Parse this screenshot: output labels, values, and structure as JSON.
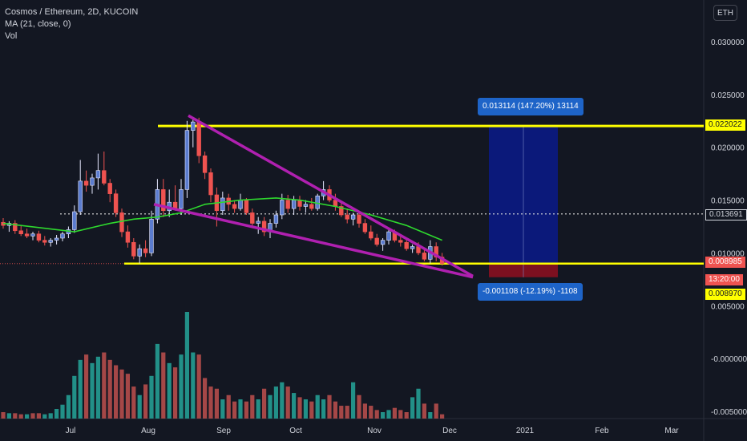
{
  "legend": {
    "title": "Cosmos / Ethereum, 2D, KUCOIN",
    "ma": "MA (21, close, 0)",
    "vol": "Vol"
  },
  "currency_button": "ETH",
  "colors": {
    "background": "#131722",
    "up": "#5b7ccf",
    "up_border": "#e6e8ff",
    "down": "#ef5350",
    "ma": "#2ed82e",
    "resistance": "#ffff00",
    "wedge": "#b020b0",
    "target_box": "#0a1a8a",
    "stop_box": "#8a1020",
    "vol_up": "#26a69a",
    "vol_down": "#c0504d",
    "axis_text": "#d1d4dc"
  },
  "chart_data": {
    "type": "candlestick",
    "x_ticks": [
      "Jul",
      "Aug",
      "Sep",
      "Oct",
      "Nov",
      "Dec",
      "2021",
      "Feb",
      "Mar"
    ],
    "y_ticks": [
      "0.030000",
      "0.025000",
      "0.020000",
      "0.015000",
      "0.010000",
      "0.005000",
      "-0.000000",
      "-0.005000"
    ],
    "ylim": [
      -0.0057,
      0.0335
    ],
    "candles": [
      {
        "t": "Jun 11",
        "o": 0.0129,
        "h": 0.0133,
        "l": 0.0123,
        "c": 0.0126
      },
      {
        "t": "Jun 13",
        "o": 0.0126,
        "h": 0.013,
        "l": 0.012,
        "c": 0.0128
      },
      {
        "t": "Jun 15",
        "o": 0.0128,
        "h": 0.0131,
        "l": 0.0118,
        "c": 0.0121
      },
      {
        "t": "Jun 17",
        "o": 0.0121,
        "h": 0.0126,
        "l": 0.0116,
        "c": 0.0118
      },
      {
        "t": "Jun 19",
        "o": 0.0118,
        "h": 0.0123,
        "l": 0.0114,
        "c": 0.0116
      },
      {
        "t": "Jun 21",
        "o": 0.0116,
        "h": 0.012,
        "l": 0.0112,
        "c": 0.0118
      },
      {
        "t": "Jun 23",
        "o": 0.0118,
        "h": 0.0121,
        "l": 0.011,
        "c": 0.0112
      },
      {
        "t": "Jun 25",
        "o": 0.0112,
        "h": 0.0116,
        "l": 0.0107,
        "c": 0.011
      },
      {
        "t": "Jun 27",
        "o": 0.011,
        "h": 0.0114,
        "l": 0.0106,
        "c": 0.0112
      },
      {
        "t": "Jun 29",
        "o": 0.0112,
        "h": 0.0117,
        "l": 0.0108,
        "c": 0.0114
      },
      {
        "t": "Jul 1",
        "o": 0.0114,
        "h": 0.012,
        "l": 0.0111,
        "c": 0.0118
      },
      {
        "t": "Jul 3",
        "o": 0.0118,
        "h": 0.0125,
        "l": 0.0114,
        "c": 0.0122
      },
      {
        "t": "Jul 5",
        "o": 0.0122,
        "h": 0.0145,
        "l": 0.0119,
        "c": 0.0139
      },
      {
        "t": "Jul 7",
        "o": 0.0139,
        "h": 0.0188,
        "l": 0.0136,
        "c": 0.0168
      },
      {
        "t": "Jul 9",
        "o": 0.0168,
        "h": 0.0178,
        "l": 0.0158,
        "c": 0.0164
      },
      {
        "t": "Jul 11",
        "o": 0.0164,
        "h": 0.0175,
        "l": 0.0156,
        "c": 0.0171
      },
      {
        "t": "Jul 13",
        "o": 0.0171,
        "h": 0.0194,
        "l": 0.016,
        "c": 0.0178
      },
      {
        "t": "Jul 15",
        "o": 0.0178,
        "h": 0.0196,
        "l": 0.0164,
        "c": 0.0166
      },
      {
        "t": "Jul 17",
        "o": 0.0166,
        "h": 0.017,
        "l": 0.0148,
        "c": 0.0156
      },
      {
        "t": "Jul 19",
        "o": 0.0156,
        "h": 0.016,
        "l": 0.0134,
        "c": 0.0138
      },
      {
        "t": "Jul 21",
        "o": 0.0138,
        "h": 0.0142,
        "l": 0.0115,
        "c": 0.012
      },
      {
        "t": "Jul 23",
        "o": 0.012,
        "h": 0.0126,
        "l": 0.0105,
        "c": 0.011
      },
      {
        "t": "Jul 25",
        "o": 0.011,
        "h": 0.0114,
        "l": 0.0094,
        "c": 0.0097
      },
      {
        "t": "Jul 27",
        "o": 0.0097,
        "h": 0.0108,
        "l": 0.009,
        "c": 0.0104
      },
      {
        "t": "Jul 29",
        "o": 0.0104,
        "h": 0.0112,
        "l": 0.0096,
        "c": 0.01
      },
      {
        "t": "Jul 31",
        "o": 0.01,
        "h": 0.014,
        "l": 0.0097,
        "c": 0.0132
      },
      {
        "t": "Aug 2",
        "o": 0.0132,
        "h": 0.017,
        "l": 0.0128,
        "c": 0.016
      },
      {
        "t": "Aug 4",
        "o": 0.016,
        "h": 0.017,
        "l": 0.0134,
        "c": 0.014
      },
      {
        "t": "Aug 6",
        "o": 0.014,
        "h": 0.016,
        "l": 0.0134,
        "c": 0.0148
      },
      {
        "t": "Aug 8",
        "o": 0.0148,
        "h": 0.0164,
        "l": 0.014,
        "c": 0.0142
      },
      {
        "t": "Aug 10",
        "o": 0.0142,
        "h": 0.017,
        "l": 0.0136,
        "c": 0.016
      },
      {
        "t": "Aug 12",
        "o": 0.016,
        "h": 0.0225,
        "l": 0.0152,
        "c": 0.0216
      },
      {
        "t": "Aug 14",
        "o": 0.0216,
        "h": 0.0226,
        "l": 0.02,
        "c": 0.0224
      },
      {
        "t": "Aug 16",
        "o": 0.0224,
        "h": 0.0228,
        "l": 0.0185,
        "c": 0.0192
      },
      {
        "t": "Aug 18",
        "o": 0.0192,
        "h": 0.0196,
        "l": 0.017,
        "c": 0.0176
      },
      {
        "t": "Aug 20",
        "o": 0.0176,
        "h": 0.018,
        "l": 0.0148,
        "c": 0.0155
      },
      {
        "t": "Aug 22",
        "o": 0.0155,
        "h": 0.0162,
        "l": 0.0125,
        "c": 0.014
      },
      {
        "t": "Aug 24",
        "o": 0.014,
        "h": 0.0158,
        "l": 0.0136,
        "c": 0.0152
      },
      {
        "t": "Aug 26",
        "o": 0.0152,
        "h": 0.0156,
        "l": 0.014,
        "c": 0.0146
      },
      {
        "t": "Aug 28",
        "o": 0.0146,
        "h": 0.015,
        "l": 0.0138,
        "c": 0.0142
      },
      {
        "t": "Aug 30",
        "o": 0.0142,
        "h": 0.0156,
        "l": 0.014,
        "c": 0.015
      },
      {
        "t": "Sep 1",
        "o": 0.015,
        "h": 0.0152,
        "l": 0.0136,
        "c": 0.0138
      },
      {
        "t": "Sep 3",
        "o": 0.0138,
        "h": 0.0142,
        "l": 0.0126,
        "c": 0.0128
      },
      {
        "t": "Sep 5",
        "o": 0.0128,
        "h": 0.0134,
        "l": 0.0118,
        "c": 0.013
      },
      {
        "t": "Sep 7",
        "o": 0.013,
        "h": 0.0134,
        "l": 0.0116,
        "c": 0.012
      },
      {
        "t": "Sep 9",
        "o": 0.012,
        "h": 0.0132,
        "l": 0.0114,
        "c": 0.0128
      },
      {
        "t": "Sep 11",
        "o": 0.0128,
        "h": 0.014,
        "l": 0.0124,
        "c": 0.0136
      },
      {
        "t": "Sep 13",
        "o": 0.0136,
        "h": 0.0156,
        "l": 0.0132,
        "c": 0.015
      },
      {
        "t": "Sep 15",
        "o": 0.015,
        "h": 0.0155,
        "l": 0.0138,
        "c": 0.0142
      },
      {
        "t": "Sep 17",
        "o": 0.0142,
        "h": 0.0154,
        "l": 0.0136,
        "c": 0.015
      },
      {
        "t": "Sep 19",
        "o": 0.015,
        "h": 0.0154,
        "l": 0.014,
        "c": 0.0144
      },
      {
        "t": "Sep 21",
        "o": 0.0144,
        "h": 0.015,
        "l": 0.0138,
        "c": 0.0146
      },
      {
        "t": "Sep 23",
        "o": 0.0146,
        "h": 0.0152,
        "l": 0.014,
        "c": 0.0142
      },
      {
        "t": "Sep 25",
        "o": 0.0142,
        "h": 0.0156,
        "l": 0.014,
        "c": 0.0154
      },
      {
        "t": "Sep 27",
        "o": 0.0154,
        "h": 0.0168,
        "l": 0.015,
        "c": 0.016
      },
      {
        "t": "Sep 29",
        "o": 0.016,
        "h": 0.0164,
        "l": 0.0148,
        "c": 0.015
      },
      {
        "t": "Oct 1",
        "o": 0.015,
        "h": 0.0156,
        "l": 0.014,
        "c": 0.0144
      },
      {
        "t": "Oct 3",
        "o": 0.0144,
        "h": 0.0148,
        "l": 0.0134,
        "c": 0.0136
      },
      {
        "t": "Oct 5",
        "o": 0.0136,
        "h": 0.0142,
        "l": 0.0128,
        "c": 0.0132
      },
      {
        "t": "Oct 7",
        "o": 0.0132,
        "h": 0.0138,
        "l": 0.0126,
        "c": 0.0136
      },
      {
        "t": "Oct 9",
        "o": 0.0136,
        "h": 0.014,
        "l": 0.0124,
        "c": 0.0128
      },
      {
        "t": "Oct 11",
        "o": 0.0128,
        "h": 0.0132,
        "l": 0.0118,
        "c": 0.012
      },
      {
        "t": "Oct 13",
        "o": 0.012,
        "h": 0.0126,
        "l": 0.0112,
        "c": 0.0114
      },
      {
        "t": "Oct 15",
        "o": 0.0114,
        "h": 0.0118,
        "l": 0.0106,
        "c": 0.0108
      },
      {
        "t": "Oct 17",
        "o": 0.0108,
        "h": 0.0114,
        "l": 0.0102,
        "c": 0.0112
      },
      {
        "t": "Oct 19",
        "o": 0.0112,
        "h": 0.0124,
        "l": 0.0108,
        "c": 0.012
      },
      {
        "t": "Oct 21",
        "o": 0.012,
        "h": 0.0122,
        "l": 0.011,
        "c": 0.0112
      },
      {
        "t": "Oct 23",
        "o": 0.0112,
        "h": 0.0116,
        "l": 0.0106,
        "c": 0.011
      },
      {
        "t": "Oct 25",
        "o": 0.011,
        "h": 0.0112,
        "l": 0.0102,
        "c": 0.0104
      },
      {
        "t": "Oct 27",
        "o": 0.0104,
        "h": 0.0108,
        "l": 0.01,
        "c": 0.0106
      },
      {
        "t": "Oct 29",
        "o": 0.0106,
        "h": 0.011,
        "l": 0.0098,
        "c": 0.01
      },
      {
        "t": "Oct 31",
        "o": 0.01,
        "h": 0.0104,
        "l": 0.0092,
        "c": 0.0094
      },
      {
        "t": "Nov 2",
        "o": 0.0094,
        "h": 0.0112,
        "l": 0.009,
        "c": 0.0106
      },
      {
        "t": "Nov 4",
        "o": 0.0106,
        "h": 0.011,
        "l": 0.0092,
        "c": 0.0096
      },
      {
        "t": "Nov 6",
        "o": 0.0096,
        "h": 0.01,
        "l": 0.0088,
        "c": 0.009
      }
    ],
    "ma_21": [
      [
        0,
        0.0128
      ],
      [
        6,
        0.0124
      ],
      [
        12,
        0.012
      ],
      [
        18,
        0.0128
      ],
      [
        22,
        0.0132
      ],
      [
        26,
        0.0134
      ],
      [
        30,
        0.0138
      ],
      [
        34,
        0.0146
      ],
      [
        40,
        0.015
      ],
      [
        46,
        0.0152
      ],
      [
        50,
        0.015
      ],
      [
        56,
        0.0144
      ],
      [
        62,
        0.0136
      ],
      [
        68,
        0.0126
      ],
      [
        74,
        0.0112
      ]
    ],
    "volume": [
      {
        "t": "Jun 11",
        "v": 0.06,
        "up": false
      },
      {
        "t": "Jun 13",
        "v": 0.05,
        "up": true
      },
      {
        "t": "Jun 15",
        "v": 0.05,
        "up": false
      },
      {
        "t": "Jun 17",
        "v": 0.04,
        "up": false
      },
      {
        "t": "Jun 19",
        "v": 0.04,
        "up": true
      },
      {
        "t": "Jun 21",
        "v": 0.05,
        "up": false
      },
      {
        "t": "Jun 23",
        "v": 0.05,
        "up": false
      },
      {
        "t": "Jun 25",
        "v": 0.04,
        "up": true
      },
      {
        "t": "Jun 27",
        "v": 0.05,
        "up": true
      },
      {
        "t": "Jun 29",
        "v": 0.09,
        "up": true
      },
      {
        "t": "Jul 1",
        "v": 0.13,
        "up": true
      },
      {
        "t": "Jul 3",
        "v": 0.22,
        "up": true
      },
      {
        "t": "Jul 5",
        "v": 0.4,
        "up": true
      },
      {
        "t": "Jul 7",
        "v": 0.55,
        "up": true
      },
      {
        "t": "Jul 9",
        "v": 0.6,
        "up": false
      },
      {
        "t": "Jul 11",
        "v": 0.52,
        "up": true
      },
      {
        "t": "Jul 13",
        "v": 0.58,
        "up": true
      },
      {
        "t": "Jul 15",
        "v": 0.62,
        "up": false
      },
      {
        "t": "Jul 17",
        "v": 0.55,
        "up": false
      },
      {
        "t": "Jul 19",
        "v": 0.5,
        "up": false
      },
      {
        "t": "Jul 21",
        "v": 0.46,
        "up": false
      },
      {
        "t": "Jul 23",
        "v": 0.42,
        "up": false
      },
      {
        "t": "Jul 25",
        "v": 0.3,
        "up": false
      },
      {
        "t": "Jul 27",
        "v": 0.22,
        "up": true
      },
      {
        "t": "Jul 29",
        "v": 0.32,
        "up": false
      },
      {
        "t": "Jul 31",
        "v": 0.4,
        "up": true
      },
      {
        "t": "Aug 2",
        "v": 0.7,
        "up": true
      },
      {
        "t": "Aug 4",
        "v": 0.62,
        "up": false
      },
      {
        "t": "Aug 6",
        "v": 0.52,
        "up": true
      },
      {
        "t": "Aug 8",
        "v": 0.48,
        "up": false
      },
      {
        "t": "Aug 10",
        "v": 0.6,
        "up": true
      },
      {
        "t": "Aug 12",
        "v": 1.0,
        "up": true
      },
      {
        "t": "Aug 14",
        "v": 0.62,
        "up": true
      },
      {
        "t": "Aug 16",
        "v": 0.6,
        "up": false
      },
      {
        "t": "Aug 18",
        "v": 0.38,
        "up": false
      },
      {
        "t": "Aug 20",
        "v": 0.3,
        "up": false
      },
      {
        "t": "Aug 22",
        "v": 0.28,
        "up": false
      },
      {
        "t": "Aug 24",
        "v": 0.18,
        "up": true
      },
      {
        "t": "Aug 26",
        "v": 0.22,
        "up": false
      },
      {
        "t": "Aug 28",
        "v": 0.16,
        "up": false
      },
      {
        "t": "Aug 30",
        "v": 0.18,
        "up": true
      },
      {
        "t": "Sep 1",
        "v": 0.16,
        "up": false
      },
      {
        "t": "Sep 3",
        "v": 0.22,
        "up": false
      },
      {
        "t": "Sep 5",
        "v": 0.18,
        "up": true
      },
      {
        "t": "Sep 7",
        "v": 0.28,
        "up": false
      },
      {
        "t": "Sep 9",
        "v": 0.22,
        "up": true
      },
      {
        "t": "Sep 11",
        "v": 0.3,
        "up": true
      },
      {
        "t": "Sep 13",
        "v": 0.34,
        "up": true
      },
      {
        "t": "Sep 15",
        "v": 0.3,
        "up": false
      },
      {
        "t": "Sep 17",
        "v": 0.24,
        "up": true
      },
      {
        "t": "Sep 19",
        "v": 0.2,
        "up": false
      },
      {
        "t": "Sep 21",
        "v": 0.18,
        "up": true
      },
      {
        "t": "Sep 23",
        "v": 0.16,
        "up": false
      },
      {
        "t": "Sep 25",
        "v": 0.22,
        "up": true
      },
      {
        "t": "Sep 27",
        "v": 0.18,
        "up": true
      },
      {
        "t": "Sep 29",
        "v": 0.22,
        "up": false
      },
      {
        "t": "Oct 1",
        "v": 0.16,
        "up": false
      },
      {
        "t": "Oct 3",
        "v": 0.12,
        "up": false
      },
      {
        "t": "Oct 5",
        "v": 0.12,
        "up": false
      },
      {
        "t": "Oct 7",
        "v": 0.34,
        "up": true
      },
      {
        "t": "Oct 9",
        "v": 0.22,
        "up": false
      },
      {
        "t": "Oct 11",
        "v": 0.14,
        "up": false
      },
      {
        "t": "Oct 13",
        "v": 0.12,
        "up": false
      },
      {
        "t": "Oct 15",
        "v": 0.08,
        "up": false
      },
      {
        "t": "Oct 17",
        "v": 0.06,
        "up": true
      },
      {
        "t": "Oct 19",
        "v": 0.08,
        "up": true
      },
      {
        "t": "Oct 21",
        "v": 0.1,
        "up": false
      },
      {
        "t": "Oct 23",
        "v": 0.08,
        "up": false
      },
      {
        "t": "Oct 25",
        "v": 0.06,
        "up": false
      },
      {
        "t": "Oct 27",
        "v": 0.2,
        "up": true
      },
      {
        "t": "Oct 29",
        "v": 0.28,
        "up": true
      },
      {
        "t": "Oct 31",
        "v": 0.14,
        "up": false
      },
      {
        "t": "Nov 2",
        "v": 0.06,
        "up": true
      },
      {
        "t": "Nov 4",
        "v": 0.14,
        "up": false
      },
      {
        "t": "Nov 6",
        "v": 0.04,
        "up": false
      }
    ],
    "drawings": {
      "resistance_level": 0.022022,
      "current_dotted_level": 0.013691,
      "support_level": 0.008985,
      "wedge_upper": [
        [
          0.023,
          "Aug 8"
        ],
        [
          0.0088,
          "Nov 8"
        ]
      ],
      "wedge_lower": [
        [
          0.0145,
          "Jul 27"
        ],
        [
          0.0085,
          "Nov 8"
        ]
      ],
      "target_tooltip": "0.013114 (147.20%) 13114",
      "stop_tooltip": "-0.001108 (-12.19%) -1108"
    },
    "price_labels": {
      "resistance": "0.022022",
      "current": "0.013691",
      "last": "0.008985",
      "countdown": "13:20:00",
      "lower": "0.008970"
    }
  }
}
